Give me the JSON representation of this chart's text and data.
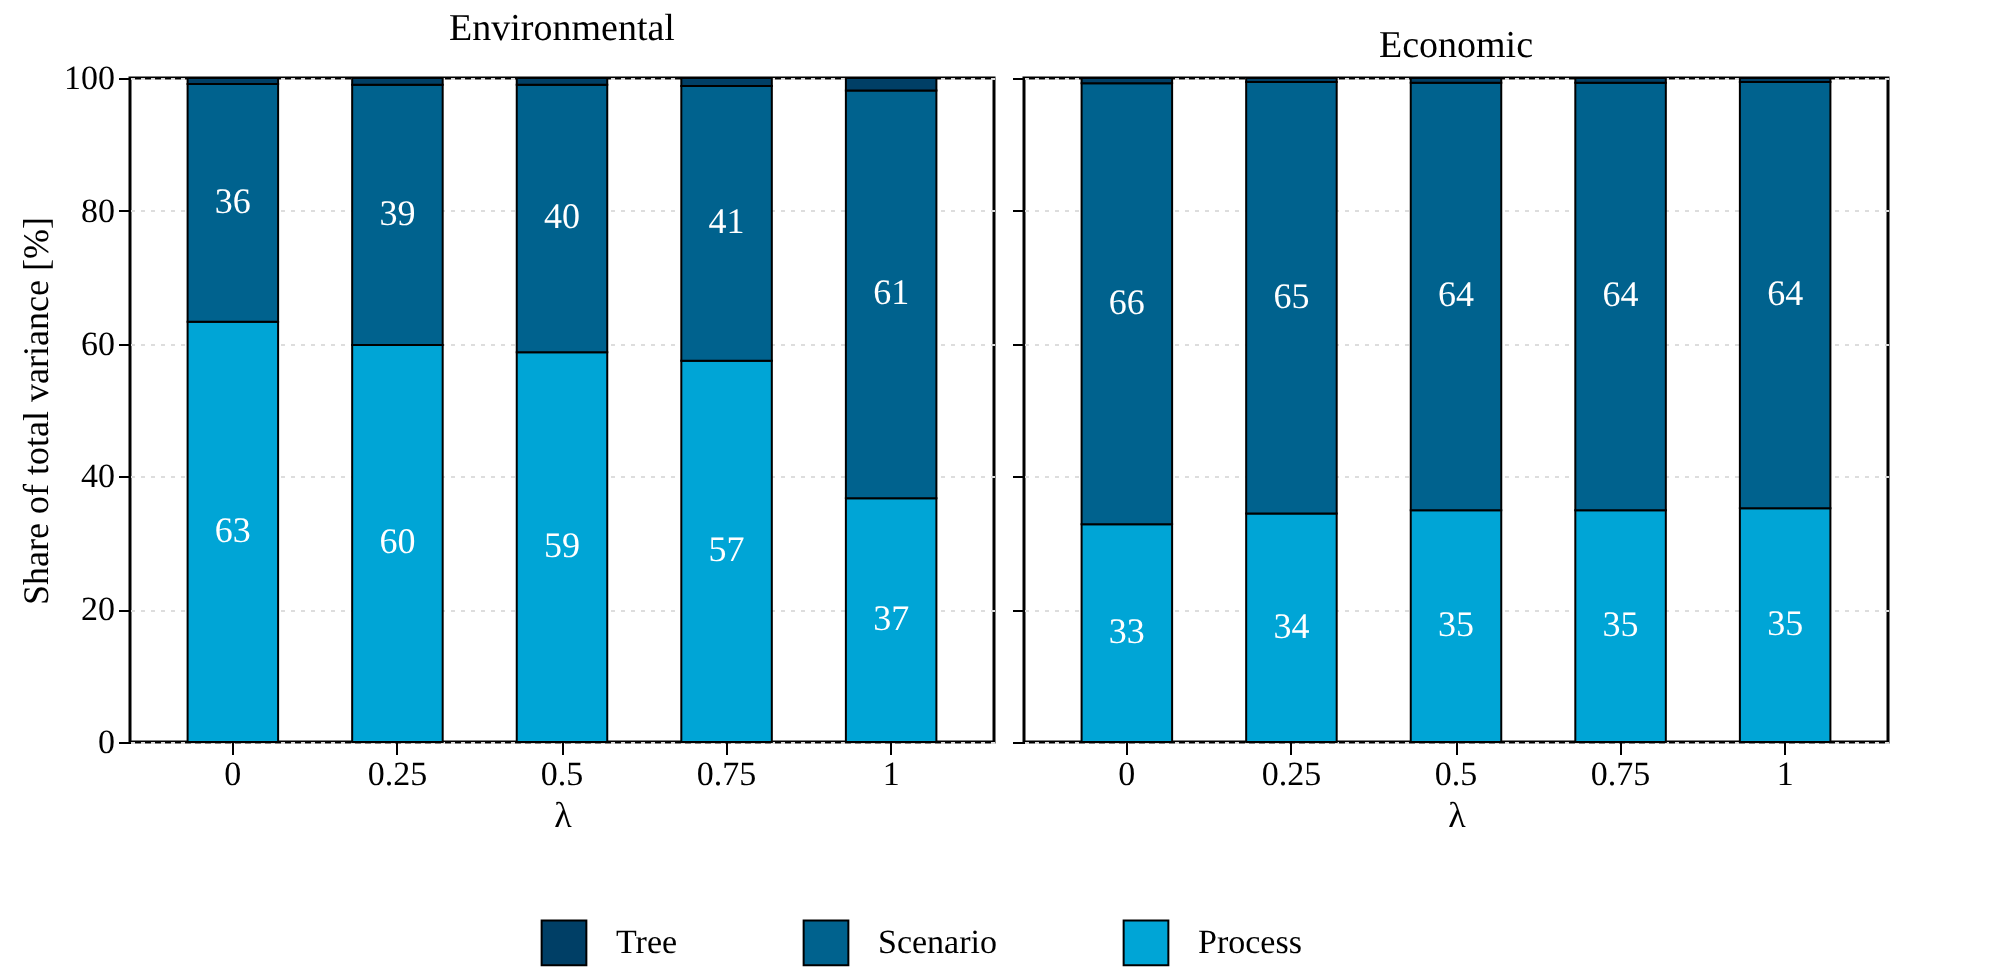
{
  "chart_data": [
    {
      "type": "bar",
      "stacked": true,
      "title": "Environmental",
      "xlabel": "λ",
      "ylabel": "Share of total variance [%]",
      "categories": [
        "0",
        "0.25",
        "0.5",
        "0.75",
        "1"
      ],
      "ylim": [
        0,
        100
      ],
      "yticks": [
        0,
        20,
        40,
        60,
        80,
        100
      ],
      "grid": "y",
      "legend": "bottom",
      "series": [
        {
          "name": "Process",
          "color": "#00a5d6",
          "values": [
            63.3,
            59.8,
            58.7,
            57.4,
            36.7
          ],
          "value_labels": [
            "63",
            "60",
            "59",
            "57",
            "37"
          ]
        },
        {
          "name": "Scenario",
          "color": "#00628e",
          "values": [
            35.8,
            39.2,
            40.3,
            41.4,
            61.4
          ],
          "value_labels": [
            "36",
            "39",
            "40",
            "41",
            "61"
          ]
        },
        {
          "name": "Tree",
          "color": "#003f66",
          "values": [
            0.9,
            1.0,
            1.0,
            1.2,
            1.9
          ]
        }
      ]
    },
    {
      "type": "bar",
      "stacked": true,
      "title": "Economic",
      "xlabel": "λ",
      "categories": [
        "0",
        "0.25",
        "0.5",
        "0.75",
        "1"
      ],
      "ylim": [
        0,
        100
      ],
      "yticks": [
        0,
        20,
        40,
        60,
        80,
        100
      ],
      "grid": "y",
      "tick_labels": "x",
      "series": [
        {
          "name": "Process",
          "color": "#00a5d6",
          "values": [
            32.8,
            34.4,
            34.9,
            34.9,
            35.2
          ],
          "value_labels": [
            "33",
            "34",
            "35",
            "35",
            "35"
          ]
        },
        {
          "name": "Scenario",
          "color": "#00628e",
          "values": [
            66.4,
            65.0,
            64.4,
            64.4,
            64.2
          ],
          "value_labels": [
            "66",
            "65",
            "64",
            "64",
            "64"
          ]
        },
        {
          "name": "Tree",
          "color": "#003f66",
          "values": [
            0.8,
            0.6,
            0.7,
            0.7,
            0.6
          ]
        }
      ]
    }
  ]
}
